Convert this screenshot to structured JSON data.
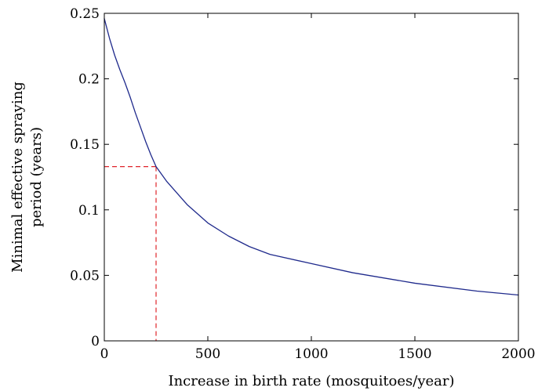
{
  "chart_data": {
    "type": "line",
    "title": "",
    "xlabel": "Increase in birth rate (mosquitoes/year)",
    "ylabel_line1": "Minimal effective spraying",
    "ylabel_line2": "period (years)",
    "xlim": [
      0,
      2000
    ],
    "ylim": [
      0,
      0.25
    ],
    "x_ticks": [
      0,
      500,
      1000,
      1500,
      2000
    ],
    "x_tick_labels": [
      "0",
      "500",
      "1000",
      "1500",
      "2000"
    ],
    "y_ticks": [
      0,
      0.05,
      0.1,
      0.15,
      0.2,
      0.25
    ],
    "y_tick_labels": [
      "0",
      "0.05",
      "0.1",
      "0.15",
      "0.2",
      "0.25"
    ],
    "grid": false,
    "series": [
      {
        "color": "#1f2a8c",
        "style": "solid",
        "points": [
          [
            0,
            0.246
          ],
          [
            25,
            0.231
          ],
          [
            50,
            0.218
          ],
          [
            75,
            0.207
          ],
          [
            100,
            0.197
          ],
          [
            125,
            0.186
          ],
          [
            150,
            0.174
          ],
          [
            175,
            0.163
          ],
          [
            200,
            0.152
          ],
          [
            225,
            0.142
          ],
          [
            250,
            0.133
          ],
          [
            300,
            0.122
          ],
          [
            400,
            0.104
          ],
          [
            500,
            0.09
          ],
          [
            600,
            0.08
          ],
          [
            700,
            0.072
          ],
          [
            800,
            0.066
          ],
          [
            1000,
            0.059
          ],
          [
            1200,
            0.052
          ],
          [
            1500,
            0.044
          ],
          [
            1800,
            0.038
          ],
          [
            2000,
            0.035
          ]
        ]
      }
    ],
    "annotation": {
      "color": "#e0242a",
      "style": "dashed",
      "x": 250,
      "y": 0.133
    }
  }
}
